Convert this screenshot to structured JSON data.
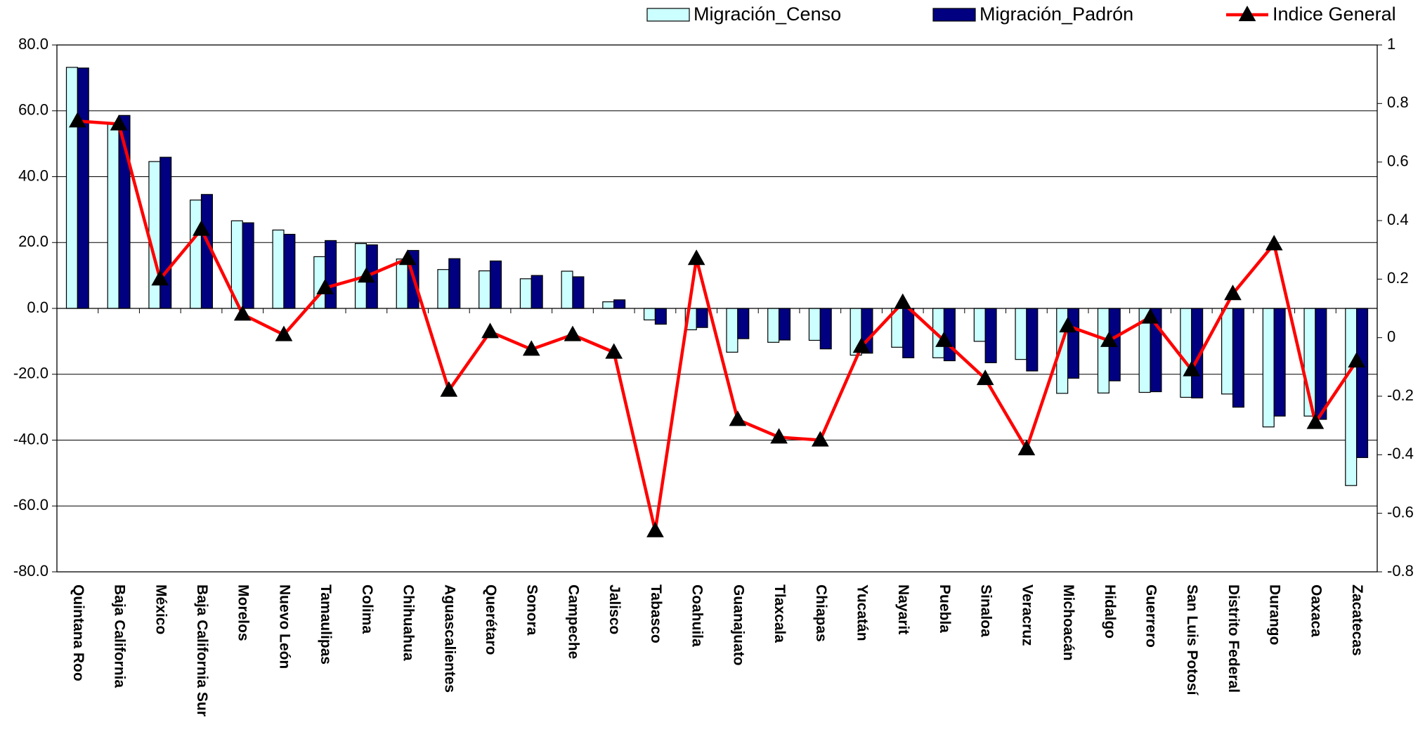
{
  "chart_data": {
    "type": "bar",
    "categories": [
      "Quintana Roo",
      "Baja California",
      "México",
      "Baja California Sur",
      "Morelos",
      "Nuevo León",
      "Tamaulipas",
      "Colima",
      "Chihuahua",
      "Aguascalientes",
      "Querétaro",
      "Sonora",
      "Campeche",
      "Jalisco",
      "Tabasco",
      "Coahuila",
      "Guanajuato",
      "Tlaxcala",
      "Chiapas",
      "Yucatán",
      "Nayarit",
      "Puebla",
      "Sinaloa",
      "Veracruz",
      "Michoacán",
      "Hidalgo",
      "Guerrero",
      "San Luis Potosí",
      "Distrito Federal",
      "Durango",
      "Oaxaca",
      "Zacatecas"
    ],
    "series": [
      {
        "name": "Migración_Censo",
        "type": "bar",
        "color": "#ccffff",
        "values": [
          73.2,
          56.0,
          44.6,
          32.9,
          26.6,
          23.8,
          15.7,
          19.7,
          15.0,
          11.8,
          11.4,
          9.0,
          11.3,
          2.0,
          -3.5,
          -6.5,
          -13.3,
          -10.3,
          -9.7,
          -14.2,
          -11.8,
          -15.0,
          -10.0,
          -15.5,
          -25.8,
          -25.7,
          -25.5,
          -27.0,
          -26.0,
          -36.0,
          -32.7,
          -53.8
        ]
      },
      {
        "name": "Migración_Padrón",
        "type": "bar",
        "color": "#000080",
        "values": [
          73.0,
          58.6,
          45.9,
          34.6,
          26.0,
          22.5,
          20.6,
          19.3,
          17.6,
          15.1,
          14.4,
          10.0,
          9.6,
          2.6,
          -4.8,
          -5.8,
          -9.2,
          -9.6,
          -12.3,
          -13.6,
          -15.0,
          -15.9,
          -16.5,
          -19.0,
          -21.2,
          -22.0,
          -25.3,
          -27.2,
          -30.0,
          -32.7,
          -33.7,
          -45.3
        ]
      },
      {
        "name": "Indice General",
        "type": "line",
        "axis": "y2",
        "color": "#ff0000",
        "marker_color": "#000000",
        "values": [
          0.74,
          0.73,
          0.2,
          0.37,
          0.08,
          0.01,
          0.17,
          0.21,
          0.27,
          -0.18,
          0.02,
          -0.04,
          0.01,
          -0.05,
          -0.66,
          0.27,
          -0.28,
          -0.34,
          -0.35,
          -0.03,
          0.12,
          -0.01,
          -0.14,
          -0.38,
          0.04,
          -0.01,
          0.07,
          -0.11,
          0.15,
          0.32,
          -0.29,
          -0.08
        ]
      }
    ],
    "ylim": [
      -80,
      80
    ],
    "yticks": [
      {
        "value": -80,
        "label": "-80.0"
      },
      {
        "value": -60,
        "label": "-60.0"
      },
      {
        "value": -40,
        "label": "-40.0"
      },
      {
        "value": -20,
        "label": "-20.0"
      },
      {
        "value": 0,
        "label": "0.0"
      },
      {
        "value": 20,
        "label": "20.0"
      },
      {
        "value": 40,
        "label": "40.0"
      },
      {
        "value": 60,
        "label": "60.0"
      },
      {
        "value": 80,
        "label": "80.0"
      }
    ],
    "y2lim": [
      -0.8,
      1
    ],
    "y2ticks": [
      -0.8,
      -0.6,
      -0.4,
      -0.2,
      0,
      0.2,
      0.4,
      0.6,
      0.8,
      1
    ],
    "grid": true,
    "legend": "top"
  }
}
